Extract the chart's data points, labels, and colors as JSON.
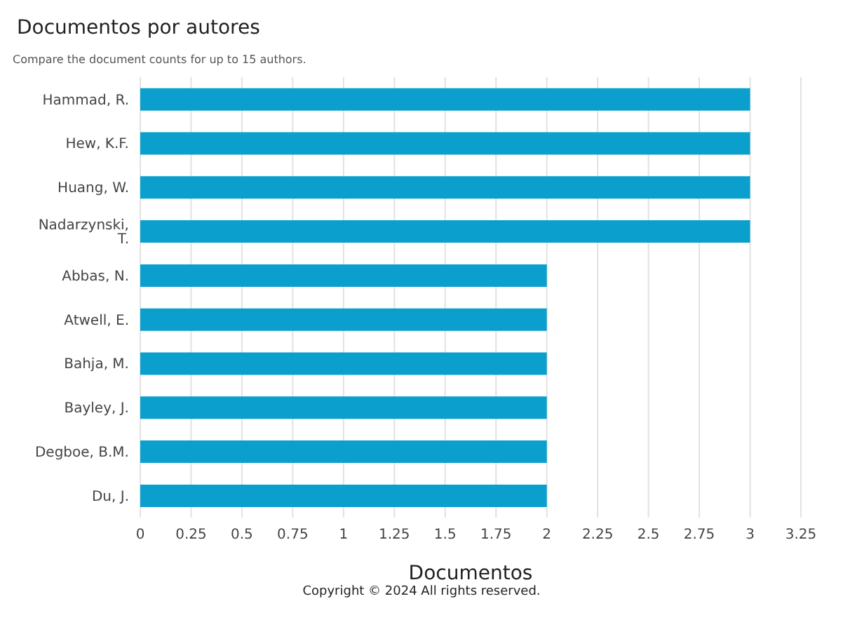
{
  "chart_data": {
    "type": "bar",
    "orientation": "horizontal",
    "title": "Documentos por autores",
    "subtitle": "Compare the document counts for up to 15 authors.",
    "xlabel": "Documentos",
    "categories": [
      "Hammad, R.",
      "Hew, K.F.",
      "Huang, W.",
      "Nadarzynski, T.",
      "Abbas, N.",
      "Atwell, E.",
      "Bahja, M.",
      "Bayley, J.",
      "Degboe, B.M.",
      "Du, J."
    ],
    "values": [
      3,
      3,
      3,
      3,
      2,
      2,
      2,
      2,
      2,
      2
    ],
    "color": "#0a9fcc",
    "xlim": [
      0,
      3.25
    ],
    "xticks": [
      0,
      0.25,
      0.5,
      0.75,
      1,
      1.25,
      1.5,
      1.75,
      2,
      2.25,
      2.5,
      2.75,
      3,
      3.25
    ],
    "grid": "x",
    "annotations": [
      "Copyright © 2024 All rights reserved."
    ]
  }
}
